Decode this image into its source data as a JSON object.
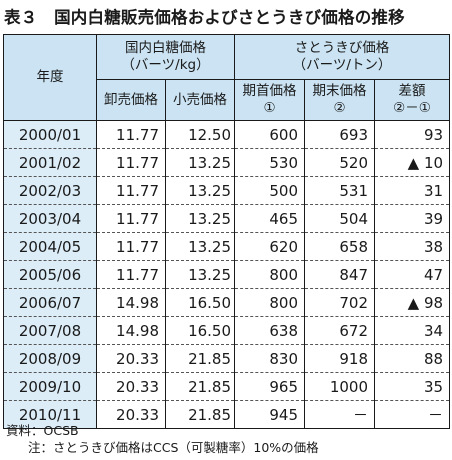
{
  "title": "表３　国内白糖販売価格およびさとうきび価格の推移",
  "table": {
    "year_header": "年度",
    "group1": {
      "label": "国内白糖価格",
      "unit": "（バーツ/kg）"
    },
    "group2": {
      "label": "さとうきび価格",
      "unit": "（バーツ/トン）"
    },
    "columns": [
      {
        "line1": "卸売価格",
        "line2": ""
      },
      {
        "line1": "小売価格",
        "line2": ""
      },
      {
        "line1": "期首価格",
        "line2": "①"
      },
      {
        "line1": "期末価格",
        "line2": "②"
      },
      {
        "line1": "差額",
        "line2": "②－①"
      }
    ],
    "rows": [
      {
        "year": "2000/01",
        "wholesale": "11.77",
        "retail": "12.50",
        "start": "600",
        "end": "693",
        "diff": "93"
      },
      {
        "year": "2001/02",
        "wholesale": "11.77",
        "retail": "13.25",
        "start": "530",
        "end": "520",
        "diff": "▲ 10"
      },
      {
        "year": "2002/03",
        "wholesale": "11.77",
        "retail": "13.25",
        "start": "500",
        "end": "531",
        "diff": "31"
      },
      {
        "year": "2003/04",
        "wholesale": "11.77",
        "retail": "13.25",
        "start": "465",
        "end": "504",
        "diff": "39"
      },
      {
        "year": "2004/05",
        "wholesale": "11.77",
        "retail": "13.25",
        "start": "620",
        "end": "658",
        "diff": "38"
      },
      {
        "year": "2005/06",
        "wholesale": "11.77",
        "retail": "13.25",
        "start": "800",
        "end": "847",
        "diff": "47"
      },
      {
        "year": "2006/07",
        "wholesale": "14.98",
        "retail": "16.50",
        "start": "800",
        "end": "702",
        "diff": "▲ 98"
      },
      {
        "year": "2007/08",
        "wholesale": "14.98",
        "retail": "16.50",
        "start": "638",
        "end": "672",
        "diff": "34"
      },
      {
        "year": "2008/09",
        "wholesale": "20.33",
        "retail": "21.85",
        "start": "830",
        "end": "918",
        "diff": "88"
      },
      {
        "year": "2009/10",
        "wholesale": "20.33",
        "retail": "21.85",
        "start": "965",
        "end": "1000",
        "diff": "35"
      },
      {
        "year": "2010/11",
        "wholesale": "20.33",
        "retail": "21.85",
        "start": "945",
        "end": "－",
        "diff": "－"
      }
    ]
  },
  "notes": {
    "source": "資料：OCSB",
    "note": "注：さとうきび価格はCCS（可製糖率）10%の価格"
  }
}
